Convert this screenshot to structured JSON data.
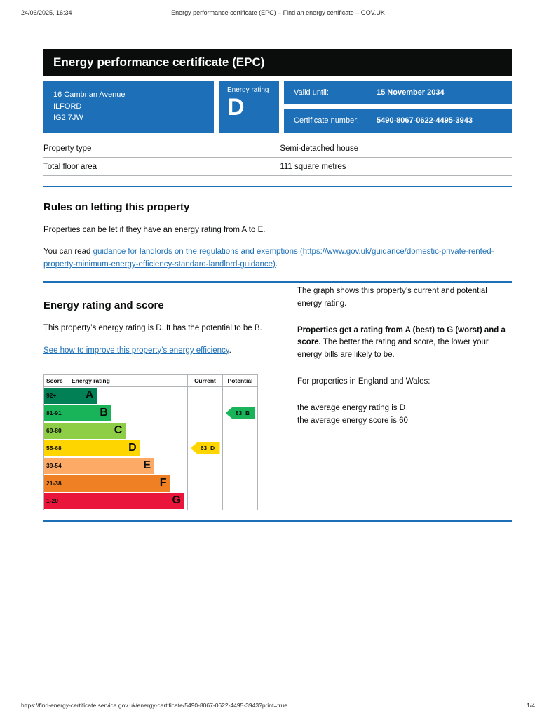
{
  "theme": {
    "brand_blue": "#1d70b8",
    "banner_bg": "#0b0c0c",
    "rule_blue": "#1d70b8"
  },
  "print_header": {
    "datetime": "24/06/2025, 16:34",
    "title": "Energy performance certificate (EPC) – Find an energy certificate – GOV.UK"
  },
  "banner": {
    "title": "Energy performance certificate (EPC)"
  },
  "summary": {
    "address_lines": [
      "16 Cambrian Avenue",
      "ILFORD",
      "IG2 7JW"
    ],
    "energy_rating_label": "Energy rating",
    "energy_rating": "D",
    "valid_until_label": "Valid until:",
    "valid_until_value": "15 November 2034",
    "certificate_number_label": "Certificate number:",
    "certificate_number_value": "5490-8067-0622-4495-3943"
  },
  "property_table": {
    "rows": [
      {
        "label": "Property type",
        "value": "Semi-detached house"
      },
      {
        "label": "Total floor area",
        "value": "111 square metres"
      }
    ]
  },
  "rules_section": {
    "heading": "Rules on letting this property",
    "paragraph1": "Properties can be let if they have an energy rating from A to E.",
    "paragraph2_prefix": "You can read ",
    "link_text": "guidance for landlords on the regulations and exemptions (https://www.gov.uk/guidance/domestic-private-rented-property-minimum-energy-efficiency-standard-landlord-guidance)",
    "paragraph2_suffix": "."
  },
  "rating_section": {
    "heading": "Energy rating and score",
    "paragraph1": "This property’s energy rating is D. It has the potential to be B.",
    "improve_link_text": "See how to improve this property’s energy efficiency",
    "improve_link_suffix": ".",
    "right_paragraph1": "The graph shows this property’s current and potential energy rating.",
    "right_paragraph2_bold": "Properties get a rating from A (best) to G (worst) and a score.",
    "right_paragraph2_rest": " The better the rating and score, the lower your energy bills are likely to be.",
    "right_paragraph3": "For properties in England and Wales:",
    "average_line1": "the average energy rating is D",
    "average_line2": "the average energy score is 60"
  },
  "chart_data": {
    "type": "bar",
    "title": "Energy rating and score chart",
    "columns": {
      "score": "Score",
      "rating": "Energy rating",
      "current": "Current",
      "potential": "Potential"
    },
    "bands": [
      {
        "score": "92+",
        "letter": "A",
        "color": "#008054"
      },
      {
        "score": "81-91",
        "letter": "B",
        "color": "#19b459"
      },
      {
        "score": "69-80",
        "letter": "C",
        "color": "#8dce46"
      },
      {
        "score": "55-68",
        "letter": "D",
        "color": "#ffd500"
      },
      {
        "score": "39-54",
        "letter": "E",
        "color": "#fcaa65"
      },
      {
        "score": "21-38",
        "letter": "F",
        "color": "#ef8023"
      },
      {
        "score": "1-20",
        "letter": "G",
        "color": "#e9153b"
      }
    ],
    "current": {
      "label": "63  D",
      "score": 63,
      "letter": "D",
      "band": "D",
      "color": "#ffd500"
    },
    "potential": {
      "label": "83  B",
      "score": 83,
      "letter": "B",
      "band": "B",
      "color": "#19b459"
    }
  },
  "print_footer": {
    "url": "https://find-energy-certificate.service.gov.uk/energy-certificate/5490-8067-0622-4495-3943?print=true",
    "page_indicator": "1/4"
  }
}
